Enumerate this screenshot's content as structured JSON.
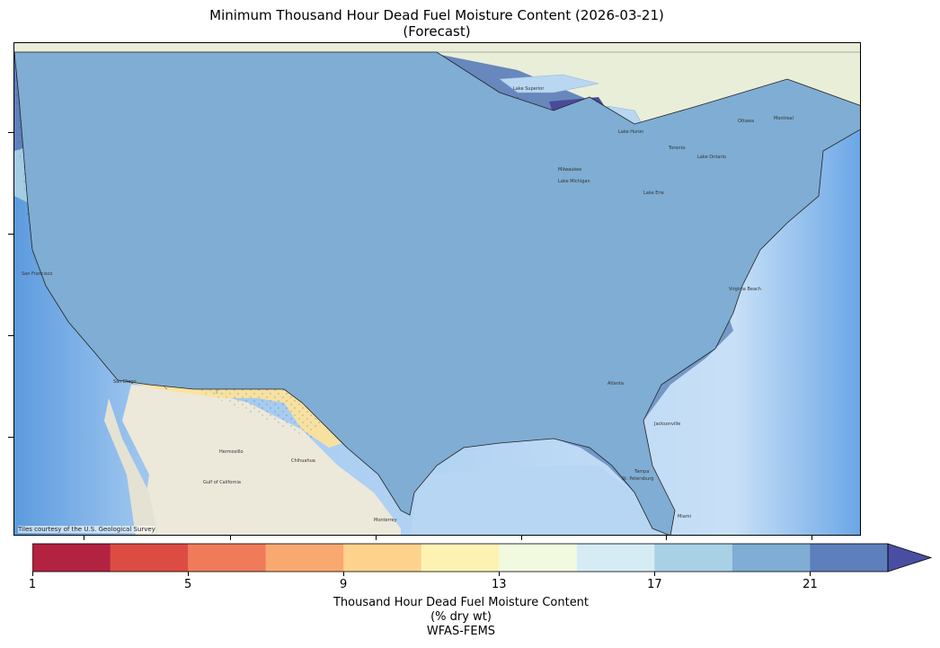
{
  "title_line1": "Minimum Thousand Hour Dead Fuel Moisture Content (2026-03-21)",
  "title_line2": "(Forecast)",
  "attribution": "Tiles courtesy of the U.S. Geological Survey",
  "colorbar": {
    "label_line1": "Thousand Hour Dead Fuel Moisture Content",
    "label_line2": "(% dry wt)",
    "source": "WFAS-FEMS",
    "tick_labels": [
      "1",
      "5",
      "9",
      "13",
      "17",
      "21"
    ],
    "tick_values": [
      1,
      5,
      9,
      13,
      17,
      21
    ],
    "range": [
      1,
      23
    ],
    "extend": "max",
    "bins": [
      1,
      3,
      5,
      7,
      9,
      11,
      13,
      15,
      17,
      19,
      21,
      23
    ],
    "colors": [
      "#b32241",
      "#dc4c43",
      "#f07b5b",
      "#f9a86f",
      "#fdd28c",
      "#fef2b3",
      "#f1f9df",
      "#d5ecf4",
      "#a9d1e6",
      "#7fadd3",
      "#5d7fbb",
      "#4a4ea3"
    ]
  },
  "map_regions": {
    "pacific_northwest_coast": "#5d7fbb",
    "northwest_interior": "#7fadd3",
    "northern_rockies": "#5d7fbb",
    "california_great_basin": "#f1f9df",
    "desert_southwest": "#fdd28c",
    "southern_plains_west": "#f1f9df",
    "central_plains": "#d5ecf4",
    "northern_plains": "#a9d1e6",
    "midwest": "#7fadd3",
    "great_lakes": "#5d7fbb",
    "southeast": "#6d92c4",
    "northeast": "#4a4ea3"
  },
  "map_places": [
    "Lake Superior",
    "Ottawa",
    "Montreal",
    "Milwaukee",
    "Lake Michigan",
    "Lake Huron",
    "Lake Ontario",
    "Lake Erie",
    "Toronto",
    "Atlanta",
    "Jacksonville",
    "Miami",
    "Tampa",
    "St. Petersburg",
    "Virginia Beach",
    "Hermosillo",
    "Chihuahua",
    "Monterrey",
    "Gulf of California",
    "San Francisco",
    "San Diego"
  ]
}
